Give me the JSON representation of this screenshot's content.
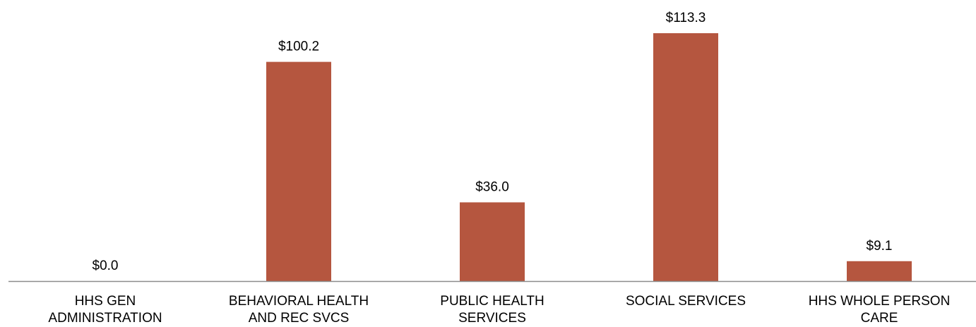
{
  "chart_data": {
    "type": "bar",
    "categories": [
      [
        "HHS GEN",
        "ADMINISTRATION"
      ],
      [
        "BEHAVIORAL HEALTH",
        "AND REC SVCS"
      ],
      [
        "PUBLIC HEALTH",
        "SERVICES"
      ],
      [
        "SOCIAL SERVICES"
      ],
      [
        "HHS WHOLE PERSON",
        "CARE"
      ]
    ],
    "values": [
      0.0,
      100.2,
      36.0,
      113.3,
      9.1
    ],
    "data_labels": [
      "$0.0",
      "$100.2",
      "$36.0",
      "$113.3",
      "$9.1"
    ],
    "title": "",
    "xlabel": "",
    "ylabel": "",
    "ylim": [
      0,
      113.3
    ],
    "grid": false,
    "legend": "none",
    "bar_color": "#B5563F",
    "axis_color": "#8C8C8C"
  }
}
